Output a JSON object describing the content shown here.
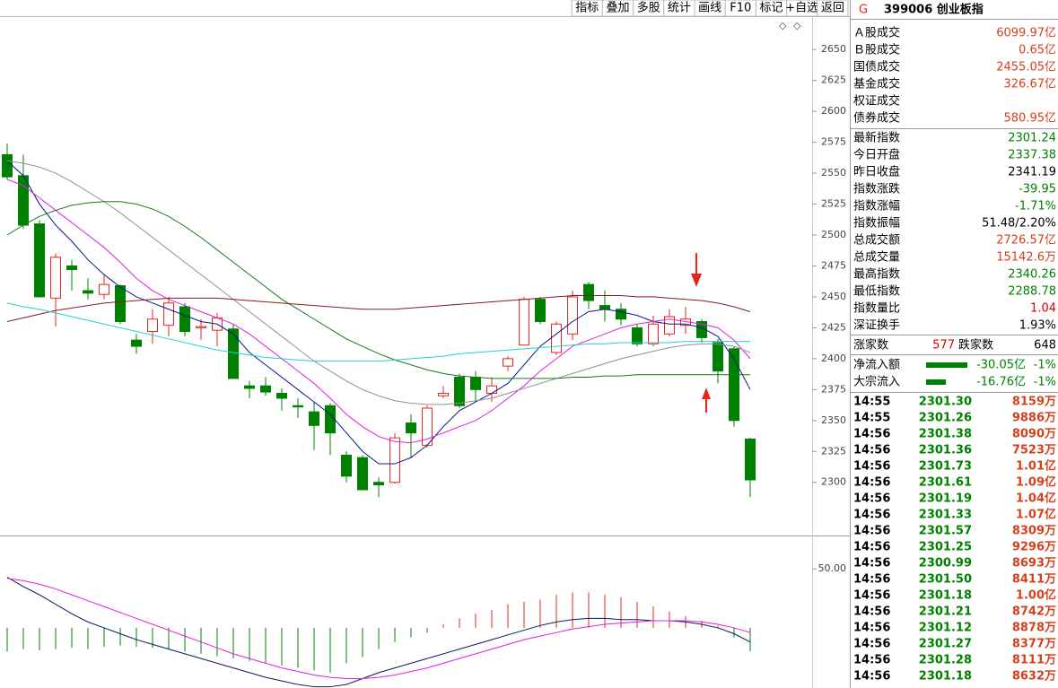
{
  "header": {
    "badge": "G",
    "title": "399006 创业板指"
  },
  "toolbar": [
    "指标",
    "叠加",
    "多股",
    "统计",
    "画线",
    "F10",
    "标记",
    "+自选",
    "返回"
  ],
  "panel": {
    "turnover": [
      {
        "label": "Ａ股成交",
        "value": "6099.97亿"
      },
      {
        "label": "Ｂ股成交",
        "value": "0.65亿"
      },
      {
        "label": "国债成交",
        "value": "2455.05亿"
      },
      {
        "label": "基金成交",
        "value": "326.67亿"
      },
      {
        "label": "权证成交"
      },
      {
        "label": "债券成交",
        "value": "580.95亿"
      }
    ],
    "quote": [
      {
        "label": "最新指数",
        "value": "2301.24",
        "color": "#008000"
      },
      {
        "label": "今日开盘",
        "value": "2337.38",
        "color": "#008000"
      },
      {
        "label": "昨日收盘",
        "value": "2341.19",
        "color": "#000000"
      },
      {
        "label": "指数涨跌",
        "value": "-39.95",
        "color": "#008000"
      },
      {
        "label": "指数涨幅",
        "value": "-1.71%",
        "color": "#008000"
      },
      {
        "label": "指数振幅",
        "value": "51.48/2.20%",
        "color": "#000000"
      },
      {
        "label": "总成交额",
        "value": "2726.57亿",
        "color": "#d6401c"
      },
      {
        "label": "总成交量",
        "value": "15142.6万",
        "color": "#d6401c"
      },
      {
        "label": "最高指数",
        "value": "2340.26",
        "color": "#008000"
      },
      {
        "label": "最低指数",
        "value": "2288.78",
        "color": "#008000"
      },
      {
        "label": "指数量比",
        "value": "1.04",
        "color": "#e00000"
      },
      {
        "label": "深证换手",
        "value": "1.93%",
        "color": "#000000"
      }
    ],
    "breadth": {
      "up_label": "涨家数",
      "up": "577",
      "down_label": "跌家数",
      "down": "648"
    },
    "flows": [
      {
        "label": "净流入额",
        "value": "-30.05亿",
        "pct": "-1%"
      },
      {
        "label": "大宗流入",
        "value": "-16.76亿",
        "pct": "-1%"
      }
    ],
    "trades": [
      [
        "14:55",
        "2301.30",
        "8159万"
      ],
      [
        "14:55",
        "2301.26",
        "9886万"
      ],
      [
        "14:56",
        "2301.38",
        "8090万"
      ],
      [
        "14:56",
        "2301.36",
        "7523万"
      ],
      [
        "14:56",
        "2301.73",
        "1.01亿"
      ],
      [
        "14:56",
        "2301.61",
        "1.09亿"
      ],
      [
        "14:56",
        "2301.19",
        "1.04亿"
      ],
      [
        "14:56",
        "2301.33",
        "1.07亿"
      ],
      [
        "14:56",
        "2301.57",
        "8309万"
      ],
      [
        "14:56",
        "2301.25",
        "9296万"
      ],
      [
        "14:56",
        "2300.99",
        "8693万"
      ],
      [
        "14:56",
        "2301.50",
        "8411万"
      ],
      [
        "14:56",
        "2301.18",
        "1.00亿"
      ],
      [
        "14:56",
        "2301.21",
        "8742万"
      ],
      [
        "14:56",
        "2301.12",
        "8878万"
      ],
      [
        "14:56",
        "2301.27",
        "8377万"
      ],
      [
        "14:56",
        "2301.28",
        "8111万"
      ],
      [
        "14:56",
        "2301.18",
        "8632万"
      ]
    ]
  },
  "chart_data": [
    {
      "type": "candlestick",
      "up_color": "#e8251d",
      "down_color": "#008000",
      "open": [
        2565,
        2548,
        2509,
        2449,
        2475,
        2455,
        2452,
        2459,
        2415,
        2422,
        2427,
        2442,
        2425,
        2423,
        2424,
        2378,
        2378,
        2372,
        2362,
        2357,
        2362,
        2322,
        2320,
        2300,
        2300,
        2348,
        2330,
        2370,
        2385,
        2385,
        2372,
        2394,
        2411,
        2448,
        2405,
        2420,
        2460,
        2443,
        2440,
        2425,
        2412,
        2420,
        2427,
        2430,
        2413,
        2408,
        2335
      ],
      "close": [
        2547,
        2508,
        2450,
        2482,
        2472,
        2453,
        2460,
        2430,
        2410,
        2432,
        2445,
        2422,
        2426,
        2433,
        2384,
        2376,
        2373,
        2368,
        2361,
        2346,
        2340,
        2305,
        2294,
        2298,
        2336,
        2340,
        2360,
        2372,
        2362,
        2375,
        2378,
        2400,
        2448,
        2430,
        2428,
        2450,
        2447,
        2440,
        2432,
        2412,
        2428,
        2434,
        2432,
        2417,
        2390,
        2350,
        2302
      ],
      "high": [
        2574,
        2565,
        2512,
        2485,
        2480,
        2465,
        2468,
        2460,
        2420,
        2440,
        2450,
        2445,
        2432,
        2437,
        2428,
        2382,
        2385,
        2376,
        2368,
        2365,
        2364,
        2325,
        2322,
        2304,
        2340,
        2355,
        2362,
        2378,
        2388,
        2390,
        2385,
        2402,
        2450,
        2450,
        2430,
        2455,
        2462,
        2455,
        2445,
        2428,
        2435,
        2440,
        2442,
        2432,
        2416,
        2410,
        2336
      ],
      "low": [
        2545,
        2505,
        2450,
        2426,
        2455,
        2448,
        2448,
        2428,
        2404,
        2412,
        2418,
        2418,
        2415,
        2410,
        2384,
        2368,
        2370,
        2358,
        2352,
        2326,
        2322,
        2300,
        2294,
        2288,
        2299,
        2320,
        2328,
        2368,
        2360,
        2365,
        2365,
        2390,
        2411,
        2428,
        2403,
        2415,
        2440,
        2430,
        2427,
        2410,
        2410,
        2418,
        2420,
        2413,
        2380,
        2345,
        2288
      ],
      "lines": [
        {
          "color": "#0a1a8c",
          "values": [
            2560,
            2548,
            2525,
            2508,
            2495,
            2480,
            2468,
            2458,
            2450,
            2445,
            2440,
            2435,
            2430,
            2428,
            2420,
            2405,
            2395,
            2385,
            2375,
            2365,
            2355,
            2340,
            2325,
            2315,
            2315,
            2320,
            2330,
            2345,
            2358,
            2365,
            2372,
            2380,
            2395,
            2410,
            2420,
            2430,
            2438,
            2440,
            2438,
            2435,
            2430,
            2428,
            2428,
            2425,
            2418,
            2400,
            2375
          ]
        },
        {
          "color": "#e020e0",
          "values": [
            2545,
            2540,
            2530,
            2520,
            2510,
            2500,
            2490,
            2478,
            2465,
            2455,
            2448,
            2443,
            2438,
            2433,
            2428,
            2420,
            2410,
            2400,
            2390,
            2380,
            2368,
            2355,
            2345,
            2337,
            2333,
            2332,
            2335,
            2340,
            2345,
            2350,
            2358,
            2368,
            2378,
            2390,
            2400,
            2410,
            2415,
            2420,
            2425,
            2428,
            2430,
            2432,
            2430,
            2428,
            2425,
            2415,
            2400
          ]
        },
        {
          "color": "#909090",
          "values": [
            2560,
            2558,
            2555,
            2550,
            2543,
            2535,
            2527,
            2518,
            2508,
            2498,
            2488,
            2478,
            2468,
            2458,
            2448,
            2438,
            2428,
            2418,
            2408,
            2398,
            2390,
            2382,
            2375,
            2370,
            2366,
            2364,
            2363,
            2363,
            2364,
            2366,
            2368,
            2372,
            2376,
            2380,
            2384,
            2388,
            2392,
            2396,
            2400,
            2403,
            2406,
            2409,
            2411,
            2412,
            2412,
            2410,
            2405
          ]
        },
        {
          "color": "#1a7a1a",
          "values": [
            2500,
            2508,
            2515,
            2520,
            2524,
            2526,
            2527,
            2527,
            2525,
            2521,
            2515,
            2507,
            2498,
            2488,
            2478,
            2468,
            2458,
            2448,
            2440,
            2432,
            2424,
            2416,
            2410,
            2404,
            2399,
            2395,
            2391,
            2388,
            2386,
            2385,
            2384,
            2384,
            2384,
            2384,
            2384,
            2385,
            2385,
            2386,
            2386,
            2387,
            2387,
            2387,
            2387,
            2387,
            2387,
            2387,
            2387
          ]
        },
        {
          "color": "#8b1a1a",
          "values": [
            2430,
            2433,
            2436,
            2439,
            2441,
            2443,
            2445,
            2446,
            2447,
            2448,
            2449,
            2449,
            2449,
            2449,
            2448,
            2447,
            2446,
            2445,
            2444,
            2443,
            2442,
            2441,
            2440,
            2440,
            2440,
            2441,
            2442,
            2443,
            2444,
            2445,
            2446,
            2447,
            2448,
            2449,
            2450,
            2451,
            2451,
            2451,
            2451,
            2450,
            2450,
            2449,
            2448,
            2447,
            2445,
            2442,
            2438
          ]
        },
        {
          "color": "#20d0d8",
          "values": [
            2445,
            2442,
            2440,
            2437,
            2434,
            2431,
            2428,
            2425,
            2422,
            2419,
            2416,
            2413,
            2410,
            2407,
            2405,
            2403,
            2401,
            2400,
            2399,
            2398,
            2398,
            2398,
            2398,
            2398,
            2399,
            2400,
            2401,
            2402,
            2404,
            2405,
            2406,
            2407,
            2408,
            2409,
            2410,
            2411,
            2412,
            2412,
            2413,
            2413,
            2413,
            2413,
            2414,
            2414,
            2414,
            2414,
            2414
          ]
        }
      ],
      "ylim": [
        2257,
        2677
      ],
      "yticks": [
        2300,
        2325,
        2350,
        2375,
        2400,
        2425,
        2450,
        2475,
        2500,
        2525,
        2550,
        2575,
        2600,
        2625,
        2650
      ]
    },
    {
      "type": "macd",
      "up_color": "#e8251d",
      "down_color": "#008000",
      "bars": [
        -20,
        -18,
        -19,
        -18,
        -17,
        -18,
        -16,
        -15,
        -16,
        -17,
        -18,
        -20,
        -22,
        -24,
        -26,
        -28,
        -30,
        -32,
        -34,
        -36,
        -38,
        -30,
        -25,
        -18,
        -12,
        -8,
        -4,
        3,
        8,
        12,
        15,
        20,
        22,
        24,
        28,
        30,
        30,
        28,
        26,
        22,
        18,
        14,
        10,
        6,
        2,
        -8,
        -20
      ],
      "lines": [
        {
          "color": "#0a1a5c",
          "values": [
            43,
            35,
            28,
            20,
            12,
            5,
            0,
            -5,
            -10,
            -14,
            -18,
            -22,
            -26,
            -30,
            -34,
            -38,
            -42,
            -45,
            -48,
            -50,
            -50,
            -48,
            -43,
            -38,
            -34,
            -30,
            -26,
            -22,
            -18,
            -14,
            -10,
            -6,
            -2,
            2,
            5,
            7,
            8,
            8,
            7,
            7,
            6,
            6,
            5,
            3,
            0,
            -5,
            -12
          ]
        },
        {
          "color": "#e020e0",
          "values": [
            42,
            40,
            37,
            33,
            28,
            23,
            18,
            13,
            8,
            3,
            -2,
            -7,
            -12,
            -17,
            -22,
            -26,
            -30,
            -34,
            -37,
            -40,
            -42,
            -43,
            -43,
            -42,
            -40,
            -37,
            -34,
            -30,
            -26,
            -22,
            -18,
            -14,
            -10,
            -7,
            -4,
            -1,
            1,
            3,
            4,
            5,
            6,
            6,
            6,
            5,
            3,
            0,
            -4
          ]
        }
      ],
      "ylim": [
        -51,
        76
      ],
      "yticks": [
        {
          "value": 50,
          "label": "50.00"
        }
      ]
    }
  ]
}
